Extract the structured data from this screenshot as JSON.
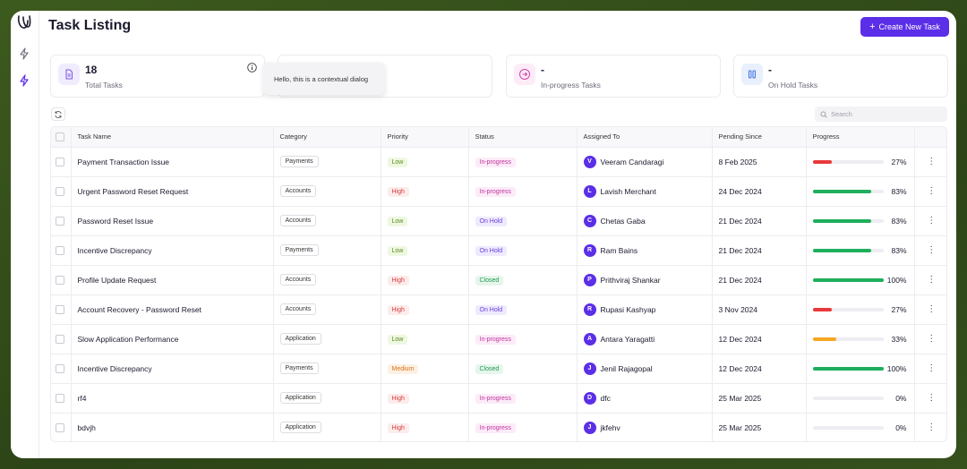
{
  "page": {
    "title": "Task Listing"
  },
  "toolbar": {
    "create_label": "Create New Task",
    "search_placeholder": "Search"
  },
  "stats": [
    {
      "value": "18",
      "label": "Total Tasks",
      "icon": "document-icon",
      "tint": "#f1ecfd",
      "color": "#7b52e8"
    },
    {
      "value": "-",
      "label": "In-progress Tasks",
      "icon": "arrow-right-circle-icon",
      "tint": "#fdecf8",
      "color": "#d23fb0"
    },
    {
      "value": "-",
      "label": "On Hold Tasks",
      "icon": "pause-icon",
      "tint": "#e8f0fd",
      "color": "#3b6fe0"
    }
  ],
  "tooltip": {
    "text": "Hello, this is a contextual dialog"
  },
  "table": {
    "headers": [
      "Task Name",
      "Category",
      "Priority",
      "Status",
      "Assigned To",
      "Pending Since",
      "Progress"
    ],
    "rows": [
      {
        "task": "Payment Transaction Issue",
        "category": "Payments",
        "priority": "Low",
        "status": "In-progress",
        "initial": "V",
        "assignee": "Veeram Candaragi",
        "since": "8 Feb 2025",
        "progress": 27,
        "progress_label": "27%"
      },
      {
        "task": "Urgent Password Reset Request",
        "category": "Accounts",
        "priority": "High",
        "status": "In-progress",
        "initial": "L",
        "assignee": "Lavish Merchant",
        "since": "24 Dec 2024",
        "progress": 83,
        "progress_label": "83%"
      },
      {
        "task": "Password Reset Issue",
        "category": "Accounts",
        "priority": "Low",
        "status": "On Hold",
        "initial": "C",
        "assignee": "Chetas Gaba",
        "since": "21 Dec 2024",
        "progress": 83,
        "progress_label": "83%"
      },
      {
        "task": "Incentive Discrepancy",
        "category": "Payments",
        "priority": "Low",
        "status": "On Hold",
        "initial": "R",
        "assignee": "Ram Bains",
        "since": "21 Dec 2024",
        "progress": 83,
        "progress_label": "83%"
      },
      {
        "task": "Profile Update Request",
        "category": "Accounts",
        "priority": "High",
        "status": "Closed",
        "initial": "P",
        "assignee": "Prithviraj Shankar",
        "since": "21 Dec 2024",
        "progress": 100,
        "progress_label": "100%"
      },
      {
        "task": "Account Recovery - Password Reset",
        "category": "Accounts",
        "priority": "High",
        "status": "On Hold",
        "initial": "R",
        "assignee": "Rupasi Kashyap",
        "since": "3 Nov 2024",
        "progress": 27,
        "progress_label": "27%"
      },
      {
        "task": "Slow Application Performance",
        "category": "Application",
        "priority": "Low",
        "status": "In-progress",
        "initial": "A",
        "assignee": "Antara Yaragatti",
        "since": "12 Dec 2024",
        "progress": 33,
        "progress_label": "33%"
      },
      {
        "task": "Incentive Discrepancy",
        "category": "Payments",
        "priority": "Medium",
        "status": "Closed",
        "initial": "J",
        "assignee": "Jenil Rajagopal",
        "since": "12 Dec 2024",
        "progress": 100,
        "progress_label": "100%"
      },
      {
        "task": "rf4",
        "category": "Application",
        "priority": "High",
        "status": "In-progress",
        "initial": "D",
        "assignee": "dfc",
        "since": "25 Mar 2025",
        "progress": 0,
        "progress_label": "0%"
      },
      {
        "task": "bdvjh",
        "category": "Application",
        "priority": "High",
        "status": "In-progress",
        "initial": "J",
        "assignee": "jkfehv",
        "since": "25 Mar 2025",
        "progress": 0,
        "progress_label": "0%"
      }
    ]
  },
  "colors": {
    "accent": "#5b2ee8",
    "priority": {
      "Low": {
        "bg": "#eef8e1",
        "fg": "#5f8a1f"
      },
      "High": {
        "bg": "#fdecec",
        "fg": "#d63a3a"
      },
      "Medium": {
        "bg": "#fdf1e3",
        "fg": "#d9741a"
      }
    },
    "status": {
      "In-progress": {
        "bg": "#fcebf8",
        "fg": "#c0359d"
      },
      "On Hold": {
        "bg": "#efeafd",
        "fg": "#6a3fe0"
      },
      "Closed": {
        "bg": "#e6f6ec",
        "fg": "#1f9a52"
      }
    },
    "progress": {
      "low": "#e8393a",
      "mid": "#f5a623",
      "high": "#1fae5d"
    }
  }
}
